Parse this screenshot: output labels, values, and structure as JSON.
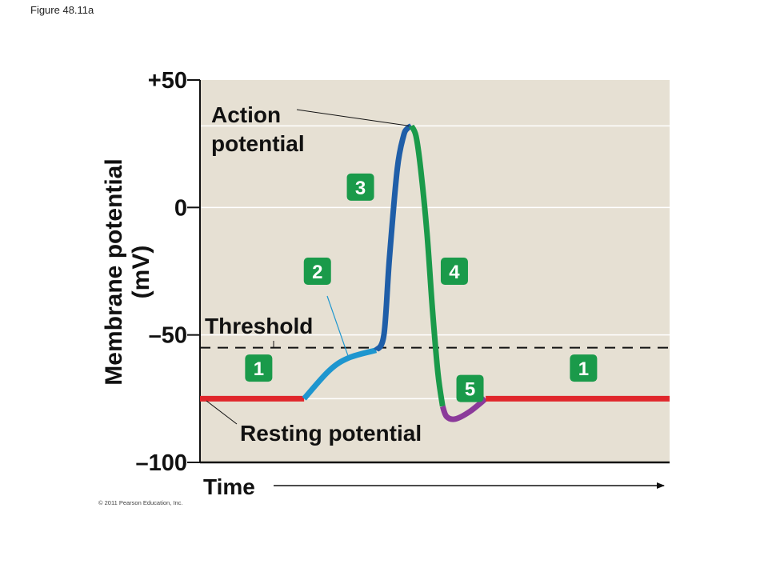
{
  "figure_label": "Figure 48.11a",
  "credit": "© 2011 Pearson Education, Inc.",
  "chart_data": {
    "type": "line",
    "title": "",
    "xlabel": "Time",
    "ylabel": [
      "Membrane potential",
      "(mV)"
    ],
    "ylim": [
      -100,
      50
    ],
    "yticks": [
      {
        "value": 50,
        "label": "+50"
      },
      {
        "value": 0,
        "label": "0"
      },
      {
        "value": -50,
        "label": "–50"
      },
      {
        "value": -100,
        "label": "–100"
      }
    ],
    "threshold": -55,
    "threshold_label": "Threshold",
    "resting": -75,
    "resting_label": "Resting potential",
    "peak_label": [
      "Action",
      "potential"
    ],
    "segments": [
      {
        "phase": 1,
        "color": "#e0262b",
        "points": [
          [
            0,
            -75
          ],
          [
            13.3,
            -75
          ]
        ]
      },
      {
        "phase": 2,
        "color": "#1e96cf",
        "points": [
          [
            13.3,
            -75
          ],
          [
            16.5,
            -64
          ],
          [
            19.0,
            -59
          ],
          [
            22.5,
            -56
          ]
        ]
      },
      {
        "phase": 3,
        "color": "#1f5ea8",
        "points": [
          [
            22.5,
            -56
          ],
          [
            23.5,
            -50
          ],
          [
            24.2,
            -20
          ],
          [
            25.2,
            15
          ],
          [
            26.0,
            28
          ],
          [
            26.5,
            31
          ],
          [
            27.0,
            32
          ]
        ]
      },
      {
        "phase": 4,
        "color": "#1a9a4a",
        "points": [
          [
            27.0,
            32
          ],
          [
            27.6,
            28
          ],
          [
            28.2,
            15
          ],
          [
            29.0,
            -10
          ],
          [
            29.7,
            -40
          ],
          [
            30.4,
            -65
          ],
          [
            31.0,
            -78
          ]
        ]
      },
      {
        "phase": 5,
        "color": "#8b3a9a",
        "points": [
          [
            31.0,
            -78
          ],
          [
            31.5,
            -82
          ],
          [
            32.6,
            -83
          ],
          [
            34.5,
            -80
          ],
          [
            36.5,
            -75
          ]
        ]
      },
      {
        "phase": 1,
        "color": "#e0262b",
        "points": [
          [
            36.5,
            -75
          ],
          [
            60,
            -75
          ]
        ]
      }
    ],
    "phase_markers": [
      {
        "label": "1",
        "t": 7.5,
        "v": -63
      },
      {
        "label": "2",
        "t": 15.0,
        "v": -25
      },
      {
        "label": "3",
        "t": 20.5,
        "v": 8
      },
      {
        "label": "4",
        "t": 32.5,
        "v": -25
      },
      {
        "label": "5",
        "t": 34.5,
        "v": -71
      },
      {
        "label": "1",
        "t": 49.0,
        "v": -63
      }
    ],
    "grid": true
  }
}
